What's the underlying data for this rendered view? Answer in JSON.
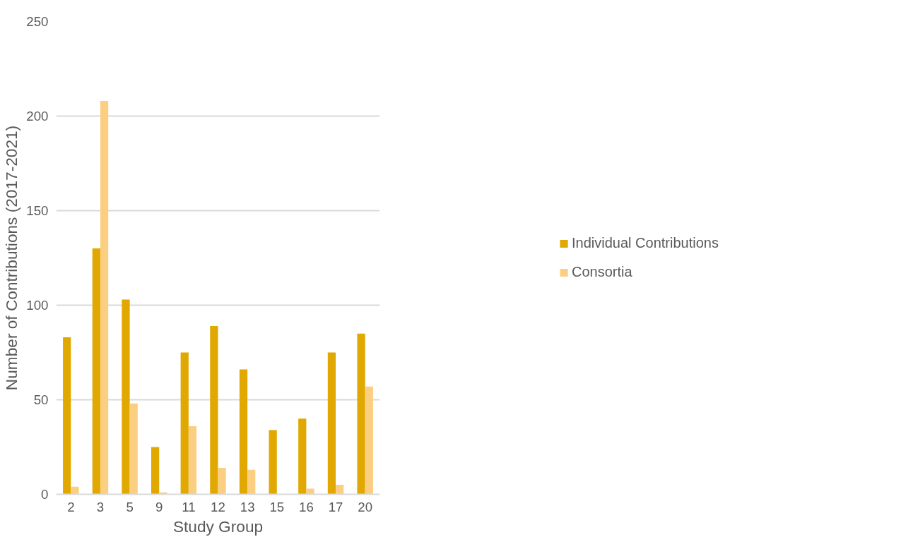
{
  "chart_data": {
    "type": "bar",
    "xlabel": "Study Group",
    "ylabel": "Number of Contributions (2017-2021)",
    "categories": [
      "2",
      "3",
      "5",
      "9",
      "11",
      "12",
      "13",
      "15",
      "16",
      "17",
      "20"
    ],
    "series": [
      {
        "name": "Individual Contributions",
        "color": "#e0a800",
        "values": [
          83,
          130,
          103,
          25,
          75,
          89,
          66,
          34,
          40,
          75,
          85
        ]
      },
      {
        "name": "Consortia",
        "color": "#fbcf82",
        "values": [
          4,
          208,
          48,
          1,
          36,
          14,
          13,
          0,
          3,
          5,
          57
        ]
      }
    ],
    "ylim": [
      0,
      250
    ],
    "yticks": [
      0,
      50,
      100,
      150,
      200,
      250
    ],
    "grid": "y",
    "legend": "right"
  }
}
